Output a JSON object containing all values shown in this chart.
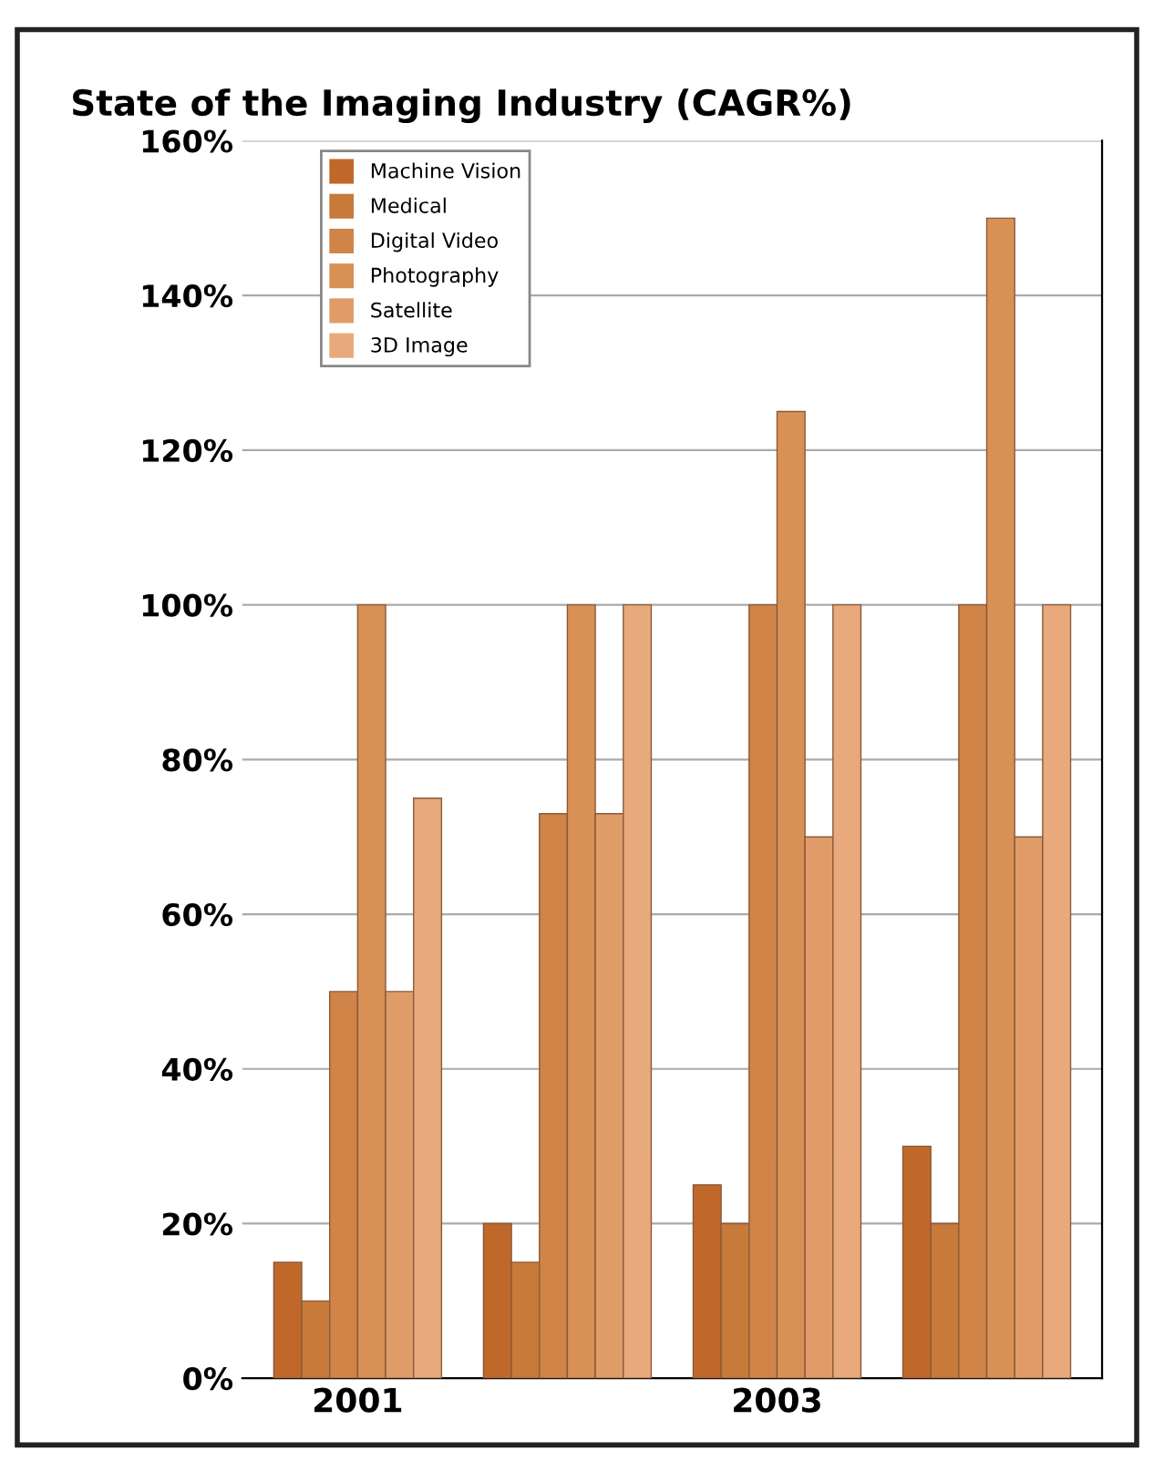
{
  "chart_data": {
    "type": "bar",
    "title": "State of the Imaging Industry (CAGR%)",
    "categories": [
      "2001",
      null,
      "2003",
      null
    ],
    "series": [
      {
        "name": "Machine Vision",
        "color": "#c0682a",
        "values": [
          15,
          20,
          25,
          30
        ]
      },
      {
        "name": "Medical",
        "color": "#c87a3a",
        "values": [
          10,
          15,
          20,
          20
        ]
      },
      {
        "name": "Digital Video",
        "color": "#d08448",
        "values": [
          50,
          73,
          100,
          100
        ]
      },
      {
        "name": "Photography",
        "color": "#d89055",
        "values": [
          100,
          100,
          125,
          150
        ]
      },
      {
        "name": "Satellite",
        "color": "#e09c68",
        "values": [
          50,
          73,
          70,
          70
        ]
      },
      {
        "name": "3D Image",
        "color": "#e8aa7c",
        "values": [
          75,
          100,
          100,
          100
        ]
      }
    ],
    "ylim": [
      0,
      160
    ],
    "yticks": [
      {
        "value": 0,
        "label": "0%"
      },
      {
        "value": 20,
        "label": "20%"
      },
      {
        "value": 40,
        "label": "40%"
      },
      {
        "value": 60,
        "label": "60%"
      },
      {
        "value": 80,
        "label": "80%"
      },
      {
        "value": 100,
        "label": "100%"
      },
      {
        "value": 120,
        "label": "120%"
      },
      {
        "value": 140,
        "label": "140%"
      },
      {
        "value": 160,
        "label": "160%"
      }
    ],
    "grid": "y",
    "legend": "top left"
  }
}
